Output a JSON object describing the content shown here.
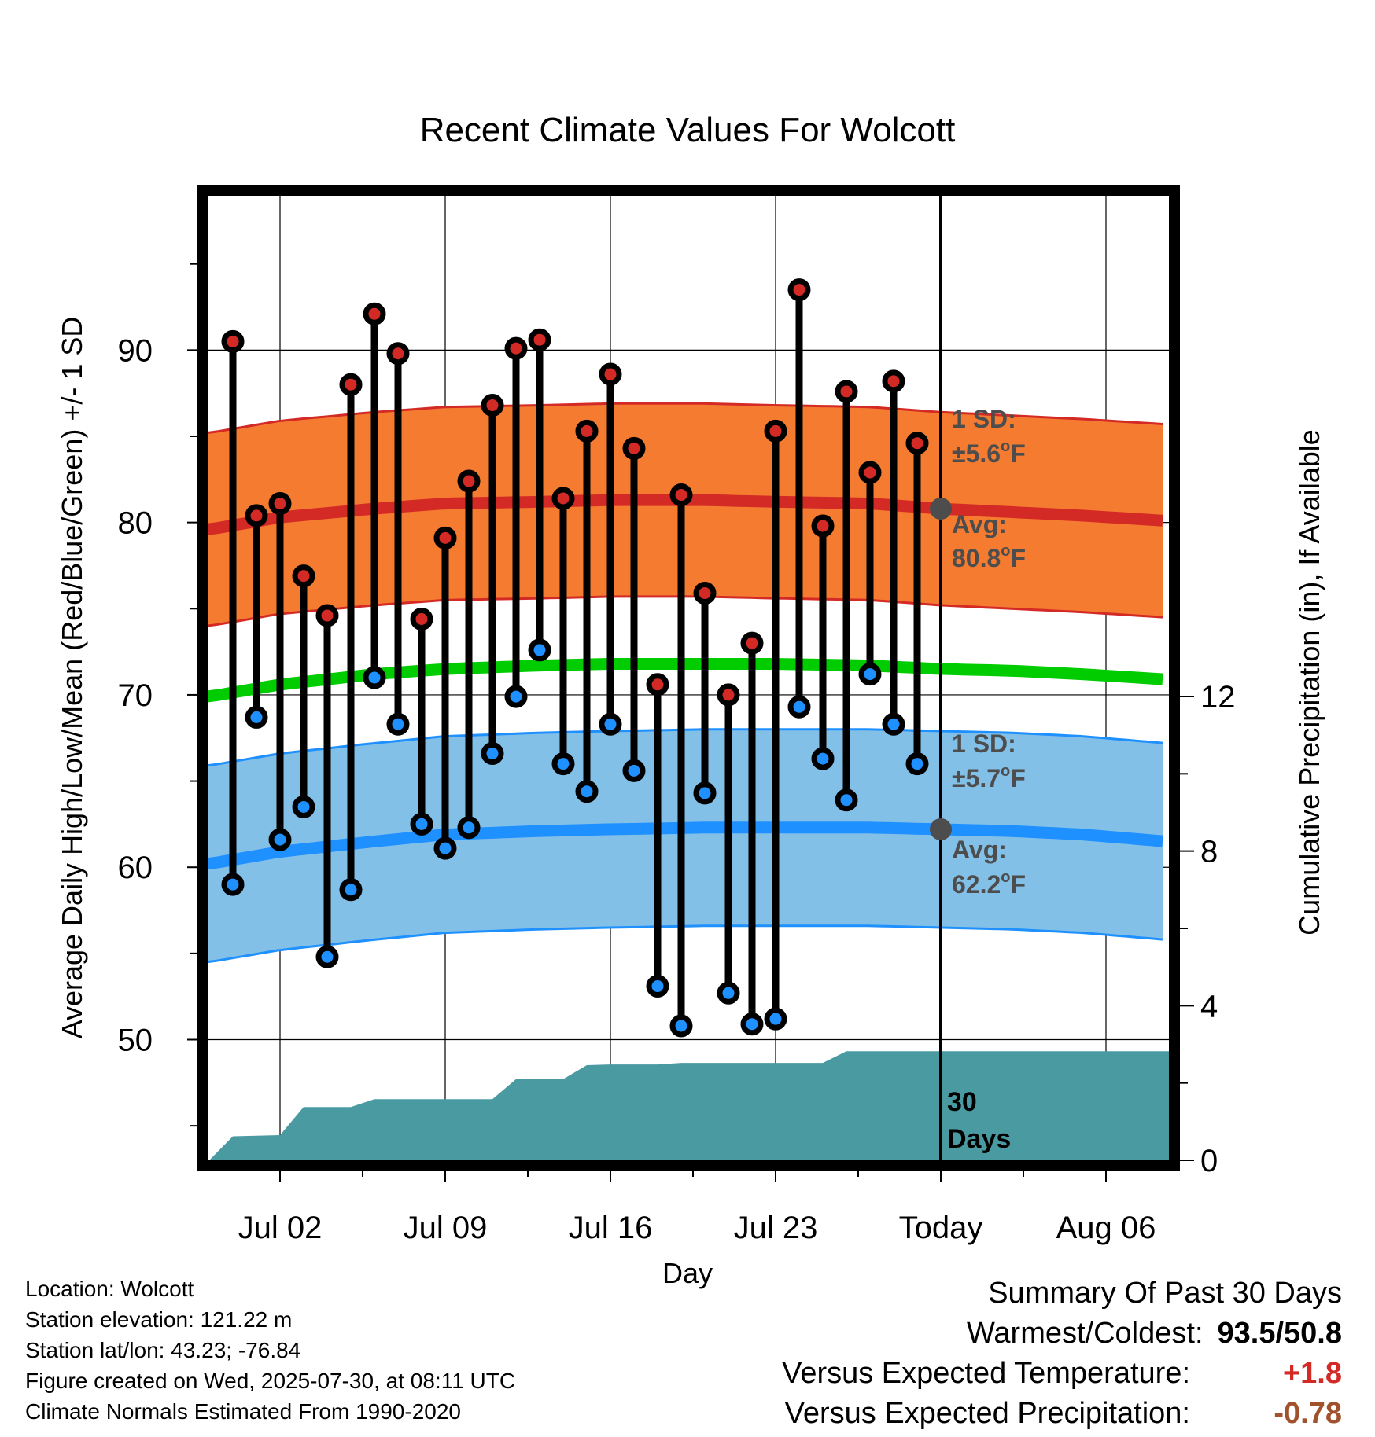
{
  "title": "Recent Climate Values For Wolcott",
  "colors": {
    "high_band": "#f47b30",
    "high_band_edge": "#d42a26",
    "high_mean": "#d42a26",
    "low_band": "#82c0e8",
    "low_band_edge": "#1e90ff",
    "low_mean": "#1e90ff",
    "green_mean": "#00cc00",
    "precip": "#4a9aa2",
    "high_marker": "#d42a26",
    "low_marker": "#1e90ff",
    "annotation": "#4d4d4d",
    "positive_anomaly": "#d42a26",
    "negative_anomaly": "#a0522d"
  },
  "chart_data": {
    "type": "scatter",
    "title": "Recent Climate Values For Wolcott",
    "xlabel": "Day",
    "ylabel": "Average Daily High/Low/Mean (Red/Blue/Green) +/- 1 SD",
    "y2label": "Cumulative Precipitation (in), If Available",
    "x_tick_labels": [
      "Jul 02",
      "Jul 09",
      "Jul 16",
      "Jul 23",
      "Today",
      "Aug 06"
    ],
    "x_range_days": [
      -31.1,
      9.7
    ],
    "ylim": [
      43,
      99
    ],
    "y_ticks": [
      50,
      60,
      70,
      80,
      90
    ],
    "y2lim": [
      0,
      12
    ],
    "y2_ticks": [
      0,
      4,
      8,
      12
    ],
    "today_marker": "Today",
    "daily_x_days": [
      -30,
      -29,
      -28,
      -27,
      -26,
      -25,
      -24,
      -23,
      -22,
      -21,
      -20,
      -19,
      -18,
      -17,
      -16,
      -15,
      -14,
      -13,
      -12,
      -11,
      -10,
      -9,
      -8,
      -7,
      -6,
      -5,
      -4,
      -3,
      -2,
      -1
    ],
    "daily_high": [
      90.5,
      80.4,
      81.1,
      76.9,
      74.6,
      88.0,
      92.1,
      89.8,
      74.4,
      79.1,
      82.4,
      86.8,
      90.1,
      90.6,
      81.4,
      85.3,
      88.6,
      84.3,
      70.6,
      81.6,
      75.9,
      70.0,
      73.0,
      85.3,
      93.5,
      79.8,
      87.6,
      82.9,
      88.2,
      84.6
    ],
    "daily_low": [
      59.0,
      68.7,
      61.6,
      63.5,
      54.8,
      58.7,
      71.0,
      68.3,
      62.5,
      61.1,
      62.3,
      66.6,
      69.9,
      72.6,
      66.0,
      64.4,
      68.3,
      65.6,
      53.1,
      50.8,
      64.3,
      52.7,
      50.9,
      51.2,
      69.3,
      66.3,
      63.9,
      71.2,
      68.3,
      66.0
    ],
    "normals_x_days": [
      -31,
      -28,
      -24,
      -21,
      -17,
      -14,
      -10,
      -7,
      -3,
      0,
      3,
      6,
      9.5
    ],
    "normal_high": [
      79.6,
      80.3,
      80.8,
      81.1,
      81.2,
      81.3,
      81.3,
      81.2,
      81.1,
      80.8,
      80.6,
      80.4,
      80.1
    ],
    "normal_low": [
      60.2,
      60.9,
      61.5,
      61.9,
      62.1,
      62.2,
      62.3,
      62.3,
      62.3,
      62.2,
      62.1,
      61.9,
      61.5
    ],
    "normal_mean": [
      69.9,
      70.6,
      71.2,
      71.5,
      71.7,
      71.8,
      71.8,
      71.8,
      71.7,
      71.5,
      71.4,
      71.2,
      70.9
    ],
    "high_sd": 5.6,
    "low_sd": 5.7,
    "precip_x_days": [
      -31,
      -30,
      -28,
      -27,
      -25,
      -24,
      -22,
      -21,
      -19,
      -18,
      -16,
      -15,
      -14,
      -12,
      -11,
      -8,
      -7,
      -5,
      -4,
      -3,
      9.7
    ],
    "cumulative_precip": [
      0.0,
      0.62,
      0.65,
      1.38,
      1.38,
      1.58,
      1.58,
      1.58,
      1.58,
      2.1,
      2.1,
      2.46,
      2.48,
      2.48,
      2.52,
      2.52,
      2.52,
      2.52,
      2.82,
      2.82,
      2.82
    ],
    "annotations": {
      "high_sd_label": "1 SD:",
      "high_sd_value": "±5.6",
      "high_avg_label": "Avg:",
      "high_avg_value": "80.8",
      "low_sd_label": "1 SD:",
      "low_sd_value": "±5.7",
      "low_avg_label": "Avg:",
      "low_avg_value": "62.2",
      "degree_o": "o",
      "unit_F": "F",
      "days_number": "30",
      "days_word": "Days"
    }
  },
  "footer": {
    "location": "Location: Wolcott",
    "elevation": "Station elevation: 121.22 m",
    "latlon": "Station lat/lon: 43.23; -76.84",
    "created": "Figure created on Wed, 2025-07-30, at 08:11 UTC",
    "normals": "Climate Normals Estimated From 1990-2020"
  },
  "summary": {
    "heading": "Summary Of Past 30 Days",
    "warmest_label": "Warmest/Coldest:",
    "warmest_value": "93.5/50.8",
    "temp_label": "Versus Expected Temperature:",
    "temp_value": "+1.8",
    "precip_label": "Versus Expected Precipitation:",
    "precip_value": "-0.78"
  }
}
